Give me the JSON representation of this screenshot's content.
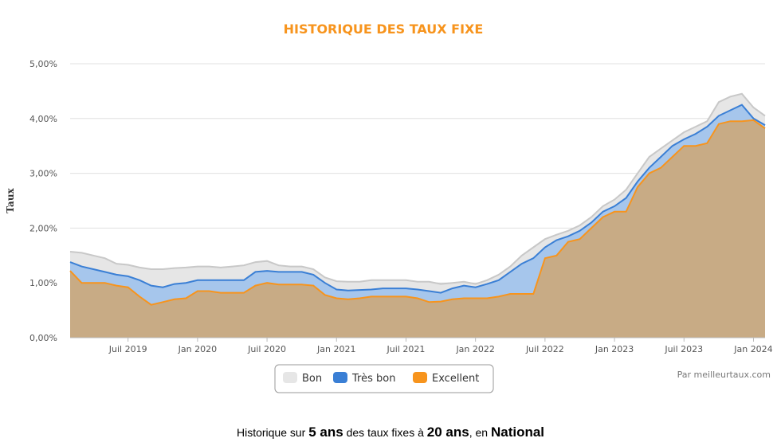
{
  "chart_data": {
    "type": "area",
    "title": "HISTORIQUE DES TAUX FIXE",
    "ylabel": "Taux",
    "ylim": [
      0,
      5
    ],
    "y_ticks": [
      "0,00%",
      "1,00%",
      "2,00%",
      "3,00%",
      "4,00%",
      "5,00%"
    ],
    "x_ticks": [
      "Juil 2019",
      "Jan 2020",
      "Juil 2020",
      "Jan 2021",
      "Juil 2021",
      "Jan 2022",
      "Juil 2022",
      "Jan 2023",
      "Juil 2023",
      "Jan 2024"
    ],
    "x_start": "2019-02",
    "x_end": "2024-02",
    "grid": true,
    "legend_position": "bottom-center",
    "credits": "Par meilleurtaux.com",
    "series": [
      {
        "name": "Bon",
        "color": "#e6e6e6",
        "points": [
          [
            "2019-02-01",
            1.57
          ],
          [
            "2019-03-01",
            1.55
          ],
          [
            "2019-04-01",
            1.5
          ],
          [
            "2019-05-01",
            1.45
          ],
          [
            "2019-06-01",
            1.35
          ],
          [
            "2019-07-01",
            1.33
          ],
          [
            "2019-08-01",
            1.28
          ],
          [
            "2019-09-01",
            1.25
          ],
          [
            "2019-10-01",
            1.25
          ],
          [
            "2019-11-01",
            1.27
          ],
          [
            "2019-12-01",
            1.28
          ],
          [
            "2020-01-01",
            1.3
          ],
          [
            "2020-02-01",
            1.3
          ],
          [
            "2020-03-01",
            1.28
          ],
          [
            "2020-04-01",
            1.3
          ],
          [
            "2020-05-01",
            1.32
          ],
          [
            "2020-06-01",
            1.38
          ],
          [
            "2020-07-01",
            1.4
          ],
          [
            "2020-08-01",
            1.32
          ],
          [
            "2020-09-01",
            1.3
          ],
          [
            "2020-10-01",
            1.3
          ],
          [
            "2020-11-01",
            1.25
          ],
          [
            "2020-12-01",
            1.1
          ],
          [
            "2021-01-01",
            1.03
          ],
          [
            "2021-02-01",
            1.02
          ],
          [
            "2021-03-01",
            1.02
          ],
          [
            "2021-04-01",
            1.05
          ],
          [
            "2021-05-01",
            1.05
          ],
          [
            "2021-06-01",
            1.05
          ],
          [
            "2021-07-01",
            1.05
          ],
          [
            "2021-08-01",
            1.02
          ],
          [
            "2021-09-01",
            1.02
          ],
          [
            "2021-10-01",
            0.98
          ],
          [
            "2021-11-01",
            1.0
          ],
          [
            "2021-12-01",
            1.02
          ],
          [
            "2022-01-01",
            0.98
          ],
          [
            "2022-02-01",
            1.05
          ],
          [
            "2022-03-01",
            1.15
          ],
          [
            "2022-04-01",
            1.3
          ],
          [
            "2022-05-01",
            1.5
          ],
          [
            "2022-06-01",
            1.65
          ],
          [
            "2022-07-01",
            1.8
          ],
          [
            "2022-08-01",
            1.88
          ],
          [
            "2022-09-01",
            1.95
          ],
          [
            "2022-10-01",
            2.05
          ],
          [
            "2022-11-01",
            2.2
          ],
          [
            "2022-12-01",
            2.4
          ],
          [
            "2023-01-01",
            2.52
          ],
          [
            "2023-02-01",
            2.7
          ],
          [
            "2023-03-01",
            3.0
          ],
          [
            "2023-04-01",
            3.3
          ],
          [
            "2023-05-01",
            3.45
          ],
          [
            "2023-06-01",
            3.6
          ],
          [
            "2023-07-01",
            3.75
          ],
          [
            "2023-08-01",
            3.85
          ],
          [
            "2023-09-01",
            3.95
          ],
          [
            "2023-10-01",
            4.3
          ],
          [
            "2023-11-01",
            4.4
          ],
          [
            "2023-12-01",
            4.45
          ],
          [
            "2024-01-01",
            4.2
          ],
          [
            "2024-02-01",
            4.05
          ]
        ]
      },
      {
        "name": "Très bon",
        "color": "#3a7fd5",
        "points": [
          [
            "2019-02-01",
            1.38
          ],
          [
            "2019-03-01",
            1.3
          ],
          [
            "2019-04-01",
            1.25
          ],
          [
            "2019-05-01",
            1.2
          ],
          [
            "2019-06-01",
            1.15
          ],
          [
            "2019-07-01",
            1.12
          ],
          [
            "2019-08-01",
            1.05
          ],
          [
            "2019-09-01",
            0.95
          ],
          [
            "2019-10-01",
            0.92
          ],
          [
            "2019-11-01",
            0.98
          ],
          [
            "2019-12-01",
            1.0
          ],
          [
            "2020-01-01",
            1.05
          ],
          [
            "2020-02-01",
            1.05
          ],
          [
            "2020-03-01",
            1.05
          ],
          [
            "2020-04-01",
            1.05
          ],
          [
            "2020-05-01",
            1.05
          ],
          [
            "2020-06-01",
            1.2
          ],
          [
            "2020-07-01",
            1.22
          ],
          [
            "2020-08-01",
            1.2
          ],
          [
            "2020-09-01",
            1.2
          ],
          [
            "2020-10-01",
            1.2
          ],
          [
            "2020-11-01",
            1.15
          ],
          [
            "2020-12-01",
            1.0
          ],
          [
            "2021-01-01",
            0.88
          ],
          [
            "2021-02-01",
            0.86
          ],
          [
            "2021-03-01",
            0.87
          ],
          [
            "2021-04-01",
            0.88
          ],
          [
            "2021-05-01",
            0.9
          ],
          [
            "2021-06-01",
            0.9
          ],
          [
            "2021-07-01",
            0.9
          ],
          [
            "2021-08-01",
            0.88
          ],
          [
            "2021-09-01",
            0.85
          ],
          [
            "2021-10-01",
            0.82
          ],
          [
            "2021-11-01",
            0.9
          ],
          [
            "2021-12-01",
            0.95
          ],
          [
            "2022-01-01",
            0.92
          ],
          [
            "2022-02-01",
            0.98
          ],
          [
            "2022-03-01",
            1.05
          ],
          [
            "2022-04-01",
            1.2
          ],
          [
            "2022-05-01",
            1.35
          ],
          [
            "2022-06-01",
            1.45
          ],
          [
            "2022-07-01",
            1.65
          ],
          [
            "2022-08-01",
            1.78
          ],
          [
            "2022-09-01",
            1.85
          ],
          [
            "2022-10-01",
            1.95
          ],
          [
            "2022-11-01",
            2.1
          ],
          [
            "2022-12-01",
            2.3
          ],
          [
            "2023-01-01",
            2.4
          ],
          [
            "2023-02-01",
            2.55
          ],
          [
            "2023-03-01",
            2.85
          ],
          [
            "2023-04-01",
            3.1
          ],
          [
            "2023-05-01",
            3.3
          ],
          [
            "2023-06-01",
            3.5
          ],
          [
            "2023-07-01",
            3.62
          ],
          [
            "2023-08-01",
            3.72
          ],
          [
            "2023-09-01",
            3.85
          ],
          [
            "2023-10-01",
            4.05
          ],
          [
            "2023-11-01",
            4.15
          ],
          [
            "2023-12-01",
            4.25
          ],
          [
            "2024-01-01",
            4.0
          ],
          [
            "2024-02-01",
            3.88
          ]
        ]
      },
      {
        "name": "Excellent",
        "color": "#f7941d",
        "points": [
          [
            "2019-02-01",
            1.22
          ],
          [
            "2019-03-01",
            1.0
          ],
          [
            "2019-04-01",
            1.0
          ],
          [
            "2019-05-01",
            1.0
          ],
          [
            "2019-06-01",
            0.95
          ],
          [
            "2019-07-01",
            0.92
          ],
          [
            "2019-08-01",
            0.75
          ],
          [
            "2019-09-01",
            0.6
          ],
          [
            "2019-10-01",
            0.65
          ],
          [
            "2019-11-01",
            0.7
          ],
          [
            "2019-12-01",
            0.72
          ],
          [
            "2020-01-01",
            0.85
          ],
          [
            "2020-02-01",
            0.85
          ],
          [
            "2020-03-01",
            0.82
          ],
          [
            "2020-04-01",
            0.82
          ],
          [
            "2020-05-01",
            0.82
          ],
          [
            "2020-06-01",
            0.95
          ],
          [
            "2020-07-01",
            1.0
          ],
          [
            "2020-08-01",
            0.97
          ],
          [
            "2020-09-01",
            0.97
          ],
          [
            "2020-10-01",
            0.97
          ],
          [
            "2020-11-01",
            0.95
          ],
          [
            "2020-12-01",
            0.78
          ],
          [
            "2021-01-01",
            0.72
          ],
          [
            "2021-02-01",
            0.7
          ],
          [
            "2021-03-01",
            0.72
          ],
          [
            "2021-04-01",
            0.75
          ],
          [
            "2021-05-01",
            0.75
          ],
          [
            "2021-06-01",
            0.75
          ],
          [
            "2021-07-01",
            0.75
          ],
          [
            "2021-08-01",
            0.72
          ],
          [
            "2021-09-01",
            0.65
          ],
          [
            "2021-10-01",
            0.66
          ],
          [
            "2021-11-01",
            0.7
          ],
          [
            "2021-12-01",
            0.72
          ],
          [
            "2022-01-01",
            0.72
          ],
          [
            "2022-02-01",
            0.72
          ],
          [
            "2022-03-01",
            0.75
          ],
          [
            "2022-04-01",
            0.8
          ],
          [
            "2022-05-01",
            0.8
          ],
          [
            "2022-06-01",
            0.8
          ],
          [
            "2022-07-01",
            1.45
          ],
          [
            "2022-08-01",
            1.5
          ],
          [
            "2022-09-01",
            1.75
          ],
          [
            "2022-10-01",
            1.8
          ],
          [
            "2022-11-01",
            2.0
          ],
          [
            "2022-12-01",
            2.2
          ],
          [
            "2023-01-01",
            2.3
          ],
          [
            "2023-02-01",
            2.3
          ],
          [
            "2023-03-01",
            2.75
          ],
          [
            "2023-04-01",
            3.0
          ],
          [
            "2023-05-01",
            3.1
          ],
          [
            "2023-06-01",
            3.3
          ],
          [
            "2023-07-01",
            3.5
          ],
          [
            "2023-08-01",
            3.5
          ],
          [
            "2023-09-01",
            3.55
          ],
          [
            "2023-10-01",
            3.9
          ],
          [
            "2023-11-01",
            3.95
          ],
          [
            "2023-12-01",
            3.95
          ],
          [
            "2024-01-01",
            3.97
          ],
          [
            "2024-02-01",
            3.82
          ]
        ]
      }
    ]
  },
  "caption": {
    "text1": "Historique sur ",
    "bold1": "5 ans",
    "text2": " des taux fixes à ",
    "bold2": "20 ans",
    "text3": ", en ",
    "bold3": "National"
  }
}
